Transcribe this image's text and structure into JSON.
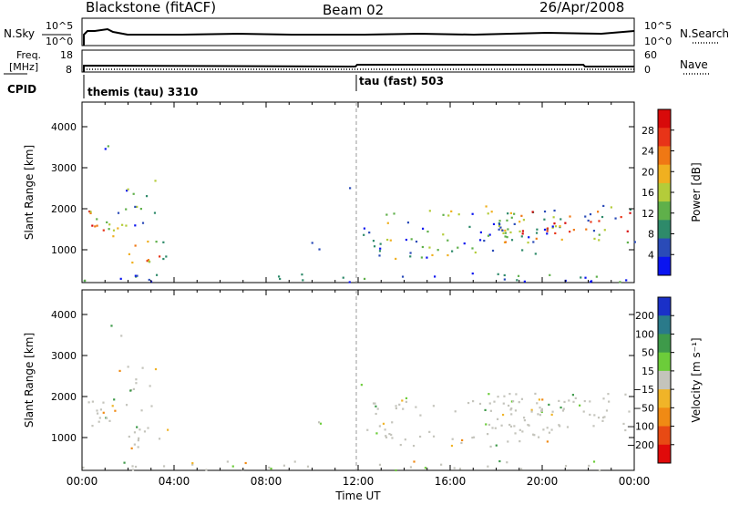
{
  "header": {
    "station": "Blackstone (fitACF)",
    "beam": "Beam 02",
    "date": "26/Apr/2008"
  },
  "top_panel": {
    "left_label": "N.Sky",
    "right_label": "N.Search",
    "left_ticks": [
      "10^5",
      "10^0"
    ],
    "right_ticks": [
      "10^5",
      "10^0"
    ]
  },
  "freq_panel": {
    "left_label_1": "Freq.",
    "left_label_2": "[MHz]",
    "right_label": "Nave",
    "left_ticks": [
      "18",
      "8"
    ],
    "right_ticks": [
      "60",
      "0"
    ]
  },
  "cpid": {
    "label": "CPID",
    "segments": [
      {
        "name": "themis (tau) 3310",
        "start_hour": 0
      },
      {
        "name": "tau (fast) 503",
        "start_hour": 12
      }
    ]
  },
  "chart_data": [
    {
      "type": "heatmap",
      "quantity": "Power",
      "xlabel": "",
      "ylabel": "Slant Range [km]",
      "yticks": [
        1000,
        2000,
        3000,
        4000
      ],
      "ylim": [
        200,
        4600
      ],
      "xlim": [
        0,
        24
      ],
      "colorbar_label": "Power [dB]",
      "colorbar_ticks": [
        4,
        8,
        12,
        16,
        20,
        24,
        28
      ],
      "colorbar_range": [
        0,
        32
      ],
      "colorbar_colors": [
        "#0a14f0",
        "#2a4bb8",
        "#2e8a6a",
        "#5fb04a",
        "#b4cc3a",
        "#f0b020",
        "#f07814",
        "#e83418",
        "#d80a0a"
      ]
    },
    {
      "type": "heatmap",
      "quantity": "Velocity",
      "xlabel": "Time UT",
      "ylabel": "Slant Range [km]",
      "yticks": [
        1000,
        2000,
        3000,
        4000
      ],
      "ylim": [
        200,
        4600
      ],
      "xlim": [
        0,
        24
      ],
      "xticks": [
        "00:00",
        "04:00",
        "08:00",
        "12:00",
        "16:00",
        "20:00",
        "00:00"
      ],
      "colorbar_label": "Velocity [m s⁻¹]",
      "colorbar_ticks": [
        "200",
        "100",
        "50",
        "15",
        "−15",
        "−50",
        "−100",
        "−200"
      ],
      "colorbar_colors": [
        "#1a30c8",
        "#2a7a8a",
        "#3e9a4a",
        "#6ccc3a",
        "#c4c4bc",
        "#f0b428",
        "#f08a14",
        "#e84a14",
        "#e00a0a"
      ]
    }
  ]
}
